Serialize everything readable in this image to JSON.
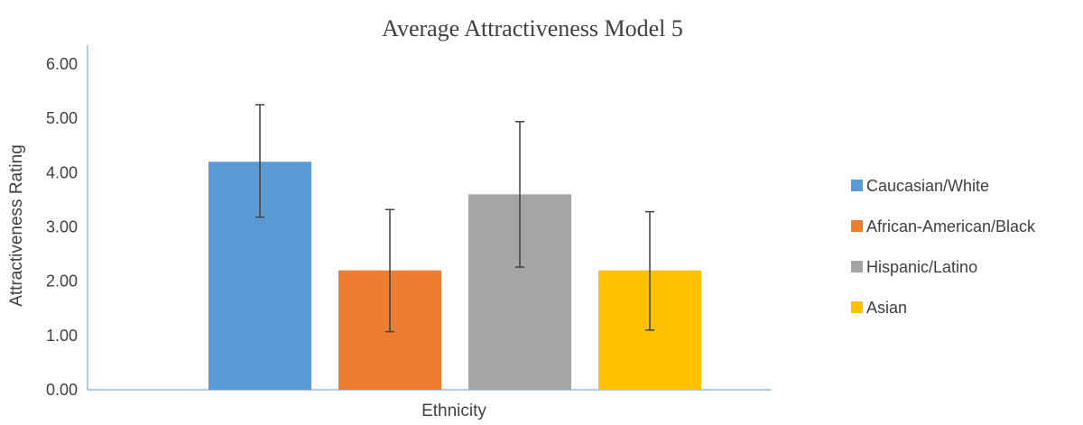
{
  "chart_data": {
    "type": "bar",
    "title": "Average Attractiveness Model 5",
    "xlabel": "Ethnicity",
    "ylabel": "Attractiveness Rating",
    "ylim": [
      0,
      6
    ],
    "yticks": [
      "0.00",
      "1.00",
      "2.00",
      "3.00",
      "4.00",
      "5.00",
      "6.00"
    ],
    "grid": false,
    "legend_position": "right",
    "series": [
      {
        "name": "Caucasian/White",
        "value": 4.2,
        "error_low": 3.18,
        "error_high": 5.25,
        "color": "#5B9BD5"
      },
      {
        "name": "African-American/Black",
        "value": 2.2,
        "error_low": 1.07,
        "error_high": 3.32,
        "color": "#ED7D31"
      },
      {
        "name": "Hispanic/Latino",
        "value": 3.6,
        "error_low": 2.26,
        "error_high": 4.94,
        "color": "#A5A5A5"
      },
      {
        "name": "Asian",
        "value": 2.2,
        "error_low": 1.1,
        "error_high": 3.28,
        "color": "#FFC000"
      }
    ]
  }
}
